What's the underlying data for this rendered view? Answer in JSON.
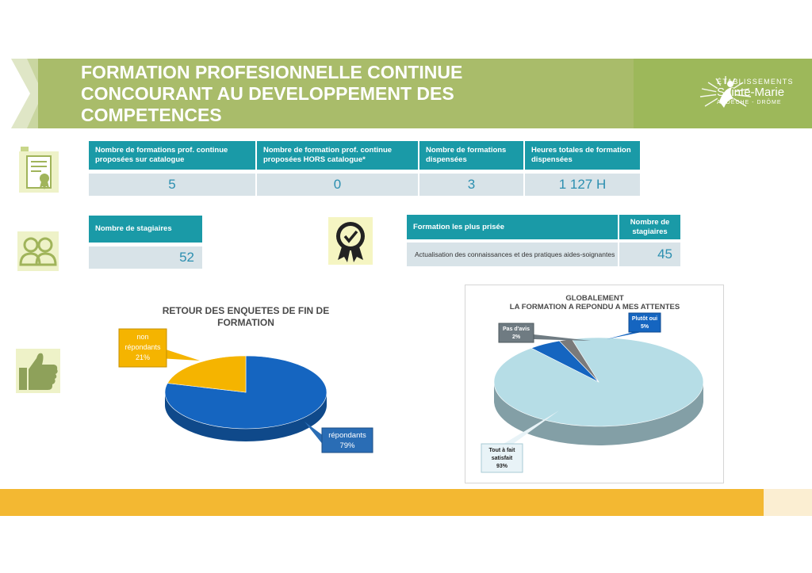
{
  "header": {
    "title_lines": [
      "FORMATION PROFESIONNELLE CONTINUE",
      "CONCOURANT AU DEVELOPPEMENT DES",
      "COMPETENCES"
    ],
    "logo": {
      "line1": "ÉTABLISSEMENTS",
      "line2": "Sainte-Marie",
      "line3": "ARDÈCHE - DRÔME"
    }
  },
  "colors": {
    "header_green": "#a9bc6a",
    "teal": "#1a9aa7",
    "value_bg": "#d8e3e8",
    "orange": "#f3b832",
    "blue": "#1565c0",
    "light_blue": "#b6dde6",
    "gold": "#f5b400"
  },
  "icons": [
    "certificate-icon",
    "people-icon",
    "medal-check-icon",
    "thumbs-up-icon"
  ],
  "stats_table": {
    "headers": [
      "Nombre de formations prof. continue proposées sur catalogue",
      "Nombre de formation prof.  continue proposées  HORS catalogue*",
      "Nombre de formations dispensées",
      "Heures totales de formation dispensées"
    ],
    "values": [
      "5",
      "0",
      "3",
      "1 127 H"
    ]
  },
  "trainees": {
    "header": "Nombre  de stagiaires",
    "value": "52"
  },
  "popular": {
    "header_label": "Formation les plus prisée",
    "header_count": "Nombre de stagiaires",
    "name": "Actualisation des connaissances et des pratiques aides-soignantes",
    "count": "45"
  },
  "chart_data": [
    {
      "type": "pie",
      "title": "RETOUR DES ENQUETES DE FIN DE FORMATION",
      "categories": [
        "répondants",
        "non répondants"
      ],
      "values": [
        79,
        21
      ],
      "labels": [
        [
          "répondants",
          "79%"
        ],
        [
          "non",
          "répondants",
          "21%"
        ]
      ],
      "colors": [
        "#1565c0",
        "#f5b400"
      ]
    },
    {
      "type": "pie",
      "title": "GLOBALEMENT\nLA FORMATION A REPONDU A MES ATTENTES",
      "title_lines": [
        "GLOBALEMENT",
        "LA FORMATION A REPONDU A MES ATTENTES"
      ],
      "categories": [
        "Tout à fait satisfait",
        "Plutôt oui",
        "Pas d'avis"
      ],
      "values": [
        93,
        5,
        2
      ],
      "labels": [
        [
          "Tout à fait",
          "satisfait",
          "93%"
        ],
        [
          "Plutôt oui",
          "5%"
        ],
        [
          "Pas d'avis",
          "2%"
        ]
      ],
      "colors": [
        "#b6dde6",
        "#1565c0",
        "#7a7a7a"
      ]
    }
  ]
}
